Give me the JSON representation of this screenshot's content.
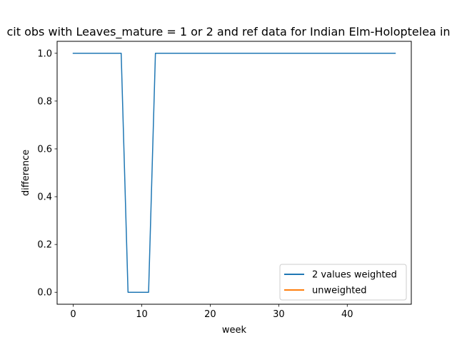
{
  "chart_data": {
    "type": "line",
    "title": "cit obs with Leaves_mature = 1 or 2 and ref data for Indian Elm-Holoptelea in",
    "xlabel": "week",
    "ylabel": "difference",
    "xlim": [
      -2.35,
      49.35
    ],
    "ylim": [
      -0.05,
      1.05
    ],
    "x_ticks": [
      0,
      10,
      20,
      30,
      40
    ],
    "y_ticks": [
      0.0,
      0.2,
      0.4,
      0.6,
      0.8,
      1.0
    ],
    "x_tick_labels": [
      "0",
      "10",
      "20",
      "30",
      "40"
    ],
    "y_tick_labels": [
      "0.0",
      "0.2",
      "0.4",
      "0.6",
      "0.8",
      "1.0"
    ],
    "legend_position": "lower-right",
    "grid": false,
    "series": [
      {
        "name": "2 values weighted",
        "color": "#1f77b4",
        "x": [
          0,
          1,
          2,
          3,
          4,
          5,
          6,
          7,
          8,
          9,
          10,
          11,
          12,
          13,
          14,
          15,
          16,
          17,
          18,
          19,
          20,
          21,
          22,
          23,
          24,
          25,
          26,
          27,
          28,
          29,
          30,
          31,
          32,
          33,
          34,
          35,
          36,
          37,
          38,
          39,
          40,
          41,
          42,
          43,
          44,
          45,
          46,
          47
        ],
        "values": [
          1,
          1,
          1,
          1,
          1,
          1,
          1,
          1,
          0,
          0,
          0,
          0,
          1,
          1,
          1,
          1,
          1,
          1,
          1,
          1,
          1,
          1,
          1,
          1,
          1,
          1,
          1,
          1,
          1,
          1,
          1,
          1,
          1,
          1,
          1,
          1,
          1,
          1,
          1,
          1,
          1,
          1,
          1,
          1,
          1,
          1,
          1,
          1
        ]
      },
      {
        "name": "unweighted",
        "color": "#ff7f0e",
        "x": [],
        "values": []
      }
    ]
  }
}
